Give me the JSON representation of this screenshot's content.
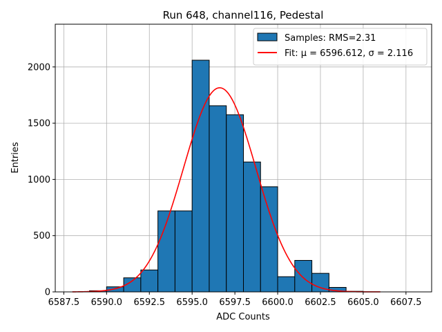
{
  "chart_data": {
    "type": "bar",
    "title": "Run 648, channel116, Pedestal",
    "xlabel": "ADC Counts",
    "ylabel": "Entries",
    "xlim": [
      6587.0,
      6609.0
    ],
    "ylim": [
      0,
      2380
    ],
    "grid": true,
    "legend_position": "top-right",
    "xticks": [
      6587.5,
      6590.0,
      6592.5,
      6595.0,
      6597.5,
      6600.0,
      6602.5,
      6605.0,
      6607.5
    ],
    "xtick_labels": [
      "6587.5",
      "6590.0",
      "6592.5",
      "6595.0",
      "6597.5",
      "6600.0",
      "6602.5",
      "6605.0",
      "6607.5"
    ],
    "yticks": [
      0,
      500,
      1000,
      1500,
      2000
    ],
    "ytick_labels": [
      "0",
      "500",
      "1000",
      "1500",
      "2000"
    ],
    "histogram": {
      "name": "Samples: RMS=2.31",
      "color": "#1f77b4",
      "edge_color": "#000000",
      "bins": [
        {
          "x0": 6588,
          "x1": 6589,
          "count": 0
        },
        {
          "x0": 6589,
          "x1": 6590,
          "count": 10
        },
        {
          "x0": 6590,
          "x1": 6591,
          "count": 45
        },
        {
          "x0": 6591,
          "x1": 6592,
          "count": 125
        },
        {
          "x0": 6592,
          "x1": 6593,
          "count": 195
        },
        {
          "x0": 6593,
          "x1": 6594,
          "count": 720
        },
        {
          "x0": 6594,
          "x1": 6595,
          "count": 720
        },
        {
          "x0": 6595,
          "x1": 6596,
          "count": 2060
        },
        {
          "x0": 6596,
          "x1": 6597,
          "count": 1655
        },
        {
          "x0": 6597,
          "x1": 6598,
          "count": 1575
        },
        {
          "x0": 6598,
          "x1": 6599,
          "count": 1155
        },
        {
          "x0": 6599,
          "x1": 6600,
          "count": 935
        },
        {
          "x0": 6600,
          "x1": 6601,
          "count": 135
        },
        {
          "x0": 6601,
          "x1": 6602,
          "count": 280
        },
        {
          "x0": 6602,
          "x1": 6603,
          "count": 165
        },
        {
          "x0": 6603,
          "x1": 6604,
          "count": 40
        },
        {
          "x0": 6604,
          "x1": 6605,
          "count": 5
        },
        {
          "x0": 6605,
          "x1": 6606,
          "count": 0
        }
      ]
    },
    "fit": {
      "name": "Fit: μ = 6596.612, σ = 2.116",
      "color": "#ff0000",
      "mu": 6596.612,
      "sigma": 2.116,
      "amplitude": 1815,
      "x_range": [
        6588.0,
        6606.0
      ]
    }
  }
}
